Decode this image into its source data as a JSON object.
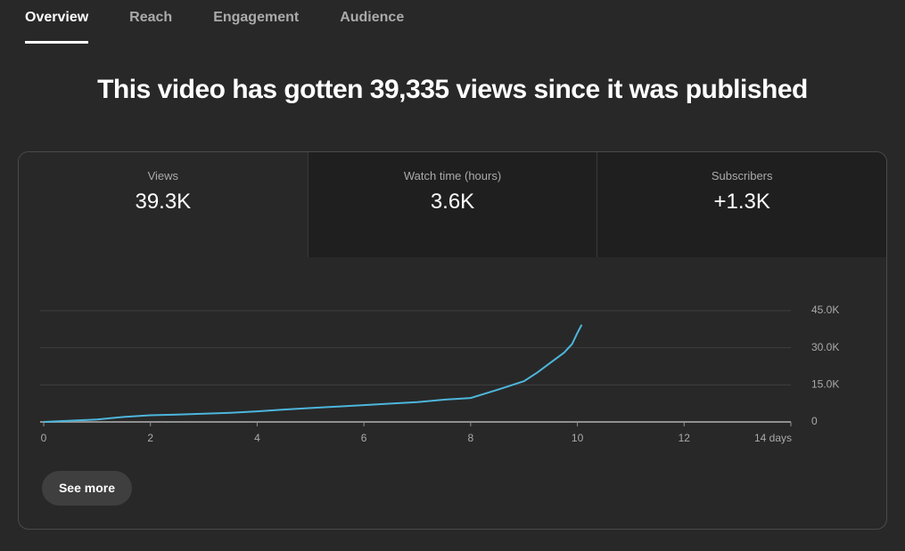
{
  "tabs": [
    "Overview",
    "Reach",
    "Engagement",
    "Audience"
  ],
  "headline": "This video has gotten 39,335 views since it was published",
  "metrics": [
    {
      "label": "Views",
      "value": "39.3K"
    },
    {
      "label": "Watch time (hours)",
      "value": "3.6K"
    },
    {
      "label": "Subscribers",
      "value": "+1.3K"
    }
  ],
  "button": "See more",
  "chart_data": {
    "type": "line",
    "color": "#4db6dc",
    "grid": true,
    "x": [
      0,
      0.5,
      1,
      1.5,
      2,
      2.5,
      3,
      3.5,
      4,
      4.5,
      5,
      5.5,
      6,
      6.5,
      7,
      7.5,
      8,
      8.5,
      9,
      9.25,
      9.5,
      9.75,
      9.9,
      10,
      10.08
    ],
    "values": [
      0,
      500,
      1000,
      2000,
      2700,
      3000,
      3300,
      3700,
      4300,
      5000,
      5600,
      6200,
      6800,
      7400,
      8000,
      9000,
      9700,
      13000,
      16500,
      20000,
      24000,
      28000,
      31500,
      36000,
      39300
    ],
    "xlim": [
      0,
      14
    ],
    "xticks": [
      0,
      2,
      4,
      6,
      8,
      10,
      12,
      {
        "value": 14,
        "label": "14 days"
      }
    ],
    "ylim": [
      0,
      45000
    ],
    "yticks": [
      0,
      {
        "value": 15000,
        "label": "15.0K"
      },
      {
        "value": 30000,
        "label": "30.0K"
      },
      {
        "value": 45000,
        "label": "45.0K"
      }
    ]
  }
}
